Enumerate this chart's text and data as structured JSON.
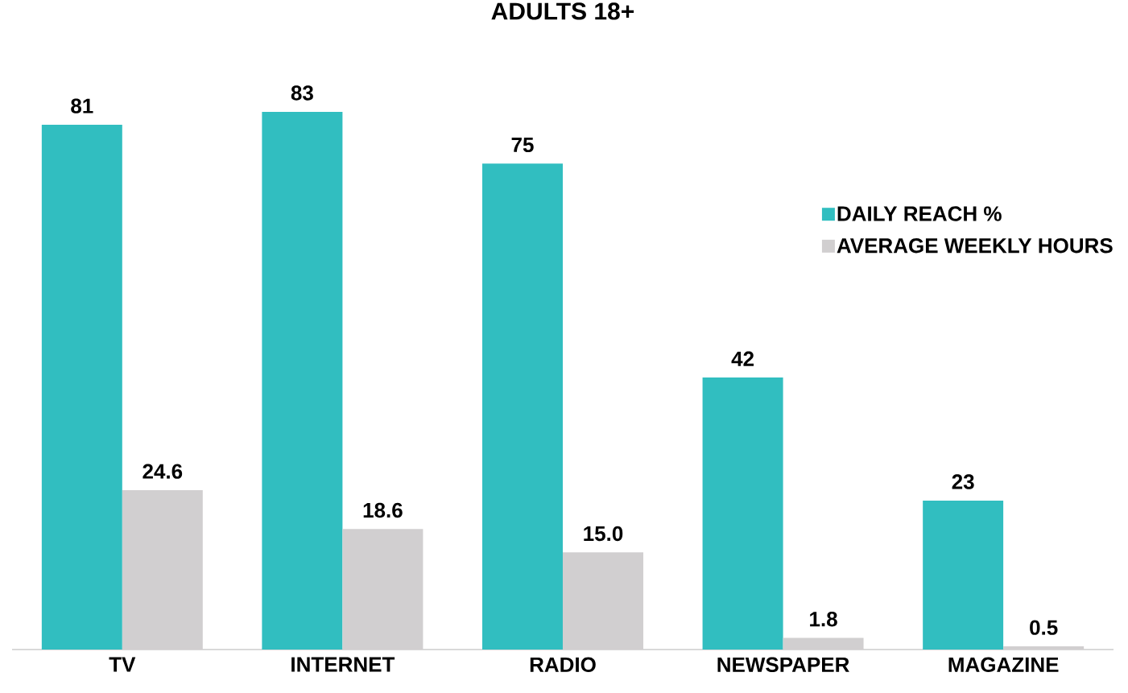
{
  "chart_data": {
    "type": "bar",
    "title": "ADULTS 18+",
    "categories": [
      "TV",
      "INTERNET",
      "RADIO",
      "NEWSPAPER",
      "MAGAZINE"
    ],
    "series": [
      {
        "name": "DAILY REACH %",
        "color": "#31bec0",
        "values": [
          81,
          83,
          75,
          42,
          23
        ],
        "value_labels": [
          "81",
          "83",
          "75",
          "42",
          "23"
        ]
      },
      {
        "name": "AVERAGE WEEKLY HOURS",
        "color": "#d1cfd0",
        "values": [
          24.6,
          18.6,
          15.0,
          1.8,
          0.5
        ],
        "value_labels": [
          "24.6",
          "18.6",
          "15.0",
          "1.8",
          "0.5"
        ]
      }
    ],
    "legend": "top right",
    "grid": false
  }
}
